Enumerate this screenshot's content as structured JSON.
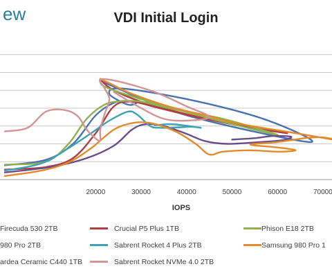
{
  "brand_fragment": "ew",
  "colors": {
    "brand": "#2a7f97",
    "grid": "#c8c8c8",
    "text": "#404040"
  },
  "chart_data": {
    "type": "line",
    "title": "VDI Initial Login",
    "xlabel": "IOPS",
    "ylabel": "",
    "xlim": [
      0,
      72000
    ],
    "x_ticks": [
      "20000",
      "30000",
      "40000",
      "50000",
      "60000",
      "70000"
    ],
    "x_tick_values": [
      20000,
      30000,
      40000,
      50000,
      60000,
      70000
    ],
    "y_grid_values": [
      50,
      100,
      150,
      200,
      250,
      300,
      350
    ],
    "ylim": [
      0,
      400
    ],
    "grid": true,
    "legend_position": "bottom",
    "series": [
      {
        "name": "Firecuda 530 2TB",
        "color": "#4a72b0",
        "points": [
          [
            0,
            40
          ],
          [
            9000,
            55
          ],
          [
            15000,
            100
          ],
          [
            20000,
            180
          ],
          [
            24000,
            215
          ],
          [
            27000,
            220
          ],
          [
            29000,
            215
          ],
          [
            27000,
            210
          ],
          [
            23000,
            240
          ],
          [
            26000,
            255
          ],
          [
            42000,
            220
          ],
          [
            58000,
            165
          ],
          [
            67000,
            105
          ],
          [
            40000,
            180
          ],
          [
            24000,
            260
          ],
          [
            21000,
            280
          ]
        ]
      },
      {
        "name": "Crucial P5 Plus 1TB",
        "color": "#b0403f",
        "points": [
          [
            0,
            28
          ],
          [
            9000,
            35
          ],
          [
            15000,
            60
          ],
          [
            20000,
            130
          ],
          [
            24000,
            205
          ],
          [
            28000,
            218
          ],
          [
            34000,
            200
          ],
          [
            44000,
            170
          ],
          [
            55000,
            148
          ],
          [
            62000,
            130
          ],
          [
            48000,
            160
          ],
          [
            32000,
            210
          ],
          [
            24000,
            250
          ],
          [
            21000,
            280
          ]
        ]
      },
      {
        "name": "Phison E18 2TB",
        "color": "#8fb24e",
        "points": [
          [
            0,
            42
          ],
          [
            9000,
            50
          ],
          [
            14000,
            100
          ],
          [
            18000,
            170
          ],
          [
            22000,
            210
          ],
          [
            26000,
            220
          ],
          [
            30000,
            218
          ],
          [
            36000,
            200
          ],
          [
            48000,
            170
          ],
          [
            60000,
            125
          ],
          [
            44000,
            175
          ],
          [
            30000,
            225
          ],
          [
            22000,
            260
          ],
          [
            21000,
            282
          ]
        ]
      },
      {
        "name": "980 Pro 2TB",
        "color": "#6a4c8c",
        "points": [
          [
            0,
            20
          ],
          [
            10000,
            35
          ],
          [
            18000,
            60
          ],
          [
            24000,
            95
          ],
          [
            28000,
            140
          ],
          [
            31000,
            155
          ],
          [
            35000,
            150
          ],
          [
            40000,
            128
          ],
          [
            44000,
            108
          ],
          [
            49000,
            100
          ],
          [
            55000,
            104
          ],
          [
            61000,
            110
          ],
          [
            63000,
            120
          ],
          [
            59000,
            122
          ],
          [
            55000,
            116
          ],
          [
            50000,
            112
          ]
        ]
      },
      {
        "name": "Sabrent Rocket 4 Plus 2TB",
        "color": "#3fa2b4",
        "points": [
          [
            0,
            25
          ],
          [
            8000,
            45
          ],
          [
            14000,
            88
          ],
          [
            19000,
            130
          ],
          [
            23000,
            165
          ],
          [
            27000,
            190
          ],
          [
            29000,
            183
          ],
          [
            32000,
            150
          ],
          [
            34000,
            145
          ],
          [
            38000,
            146
          ],
          [
            41000,
            148
          ],
          [
            43000,
            145
          ],
          [
            37000,
            155
          ],
          [
            33000,
            152
          ]
        ]
      },
      {
        "name": "Samsung 980 Pro 1TB",
        "color": "#e58a2b",
        "points": [
          [
            0,
            10
          ],
          [
            8000,
            25
          ],
          [
            14000,
            48
          ],
          [
            19000,
            88
          ],
          [
            24000,
            140
          ],
          [
            28000,
            158
          ],
          [
            31000,
            160
          ],
          [
            34000,
            152
          ],
          [
            38000,
            132
          ],
          [
            42000,
            100
          ],
          [
            45000,
            70
          ],
          [
            48000,
            78
          ],
          [
            54000,
            82
          ],
          [
            60000,
            78
          ],
          [
            64000,
            82
          ],
          [
            60000,
            90
          ],
          [
            54000,
            98
          ],
          [
            60000,
            105
          ],
          [
            66000,
            116
          ],
          [
            70000,
            118
          ],
          [
            74000,
            108
          ],
          [
            64000,
            130
          ],
          [
            52000,
            155
          ],
          [
            44000,
            180
          ],
          [
            36000,
            205
          ],
          [
            28000,
            240
          ],
          [
            23000,
            270
          ],
          [
            21000,
            282
          ]
        ]
      },
      {
        "name": "Sabrent Rocket NVMe 4.0 2TB",
        "color": "#d39494",
        "points": [
          [
            0,
            135
          ],
          [
            5000,
            145
          ],
          [
            9000,
            190
          ],
          [
            13000,
            195
          ],
          [
            16000,
            178
          ],
          [
            18000,
            140
          ],
          [
            20000,
            115
          ],
          [
            21000,
            110
          ],
          [
            21000,
            140
          ],
          [
            22000,
            185
          ],
          [
            23000,
            225
          ],
          [
            22000,
            255
          ],
          [
            21000,
            280
          ],
          [
            25000,
            275
          ],
          [
            33000,
            245
          ],
          [
            40000,
            205
          ],
          [
            45000,
            175
          ],
          [
            40000,
            165
          ],
          [
            35000,
            170
          ],
          [
            30000,
            200
          ],
          [
            24000,
            245
          ]
        ]
      }
    ]
  },
  "legend": [
    {
      "label": "Firecuda 530 2TB",
      "color": "#4a72b0"
    },
    {
      "label": "Crucial P5 Plus 1TB",
      "color": "#b0403f"
    },
    {
      "label": "Phison E18 2TB",
      "color": "#8fb24e"
    },
    {
      "label": "980 Pro 2TB",
      "color": "#6a4c8c"
    },
    {
      "label": "Sabrent Rocket 4 Plus 2TB",
      "color": "#3fa2b4"
    },
    {
      "label": "Samsung 980 Pro 1",
      "color": "#e58a2b"
    },
    {
      "label": "ardea Ceramic C440 1TB",
      "color": "#8a8aa8"
    },
    {
      "label": "Sabrent Rocket NVMe 4.0 2TB",
      "color": "#d39494"
    }
  ]
}
